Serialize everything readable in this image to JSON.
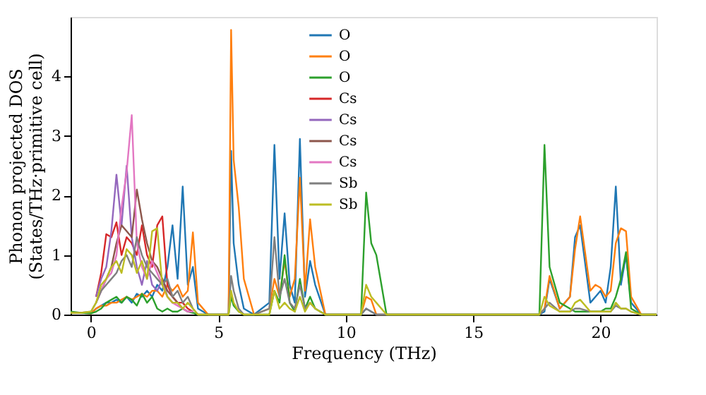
{
  "chart_data": {
    "type": "line",
    "xlabel": "Frequency (THz)",
    "ylabel": "Phonon projected DOS\n(States/THz·primitive cell)",
    "xlim": [
      -0.8,
      22.2
    ],
    "ylim": [
      0,
      5
    ],
    "xticks": [
      0,
      5,
      10,
      15,
      20
    ],
    "yticks": [
      0,
      1,
      2,
      3,
      4
    ],
    "grid": false,
    "legend": "top",
    "marker": "none",
    "line_style": "solid",
    "x": [
      -0.8,
      -0.4,
      0,
      0.2,
      0.4,
      0.6,
      0.8,
      1.0,
      1.2,
      1.4,
      1.6,
      1.8,
      2.0,
      2.2,
      2.4,
      2.6,
      2.8,
      3.0,
      3.2,
      3.4,
      3.6,
      3.8,
      4.0,
      4.2,
      4.6,
      5.4,
      5.5,
      5.6,
      5.8,
      6.0,
      6.4,
      7.0,
      7.2,
      7.4,
      7.6,
      7.8,
      8.0,
      8.2,
      8.4,
      8.6,
      8.8,
      9.2,
      10.0,
      10.6,
      10.8,
      11.0,
      11.2,
      11.6,
      17.6,
      17.8,
      18.0,
      18.4,
      18.8,
      19.0,
      19.2,
      19.6,
      19.8,
      20.0,
      20.2,
      20.4,
      20.6,
      20.8,
      21.0,
      21.2,
      21.6,
      22.2
    ],
    "series": [
      {
        "name": "O",
        "color": "#1f77b4",
        "values": [
          null,
          null,
          0.02,
          0.1,
          0.15,
          0.2,
          0.2,
          0.25,
          0.2,
          0.3,
          0.2,
          0.35,
          0.3,
          0.4,
          0.3,
          0.5,
          0.4,
          0.8,
          1.5,
          0.6,
          2.15,
          0.5,
          0.8,
          0.1,
          0,
          0,
          2.75,
          1.2,
          0.5,
          0.1,
          0,
          0.2,
          2.85,
          0.6,
          1.7,
          0.5,
          0.2,
          2.95,
          0.3,
          0.9,
          0.5,
          0,
          0,
          0,
          0.1,
          0.05,
          0,
          0,
          0,
          0.05,
          0.6,
          0.1,
          0.3,
          1.3,
          1.5,
          0.2,
          0.3,
          0.4,
          0.2,
          0.8,
          2.15,
          0.5,
          1.0,
          0.2,
          0,
          0
        ]
      },
      {
        "name": "O",
        "color": "#ff7f0e",
        "values": [
          0.03,
          0.03,
          0.02,
          0.1,
          0.15,
          0.15,
          0.2,
          0.2,
          0.25,
          0.3,
          0.25,
          0.3,
          0.35,
          0.3,
          0.4,
          0.4,
          0.3,
          0.5,
          0.4,
          0.5,
          0.3,
          0.4,
          1.38,
          0.2,
          0,
          0,
          4.78,
          2.6,
          1.8,
          0.6,
          0,
          0.1,
          0.6,
          0.3,
          0.9,
          0.3,
          0.6,
          2.3,
          0.4,
          1.6,
          0.8,
          0,
          0,
          0,
          0.3,
          0.25,
          0,
          0,
          0,
          0.1,
          0.65,
          0.1,
          0.3,
          1.1,
          1.65,
          0.4,
          0.5,
          0.45,
          0.3,
          0.4,
          1.2,
          1.45,
          1.4,
          0.3,
          0,
          0
        ]
      },
      {
        "name": "O",
        "color": "#2ca02c",
        "values": [
          0.05,
          0.03,
          0.02,
          0.05,
          0.1,
          0.2,
          0.25,
          0.3,
          0.2,
          0.3,
          0.25,
          0.15,
          0.35,
          0.2,
          0.3,
          0.1,
          0.05,
          0.1,
          0.05,
          0.05,
          0.1,
          0.05,
          0.03,
          0,
          0,
          0,
          0.3,
          0.15,
          0.05,
          0,
          0,
          0,
          0.4,
          0.2,
          1.0,
          0.2,
          0.05,
          0.6,
          0.1,
          0.3,
          0.1,
          0,
          0,
          0,
          2.05,
          1.2,
          1.0,
          0,
          0,
          2.85,
          0.8,
          0.2,
          0.1,
          0.05,
          0.05,
          0.05,
          0.05,
          0.05,
          0.1,
          0.1,
          0.3,
          0.6,
          1.05,
          0.1,
          0,
          0
        ]
      },
      {
        "name": "Cs",
        "color": "#d62728",
        "values": [
          null,
          null,
          null,
          0.3,
          0.7,
          1.35,
          1.3,
          1.55,
          1.0,
          1.3,
          1.2,
          1.0,
          1.5,
          1.0,
          0.8,
          1.5,
          1.65,
          0.5,
          0.3,
          0.2,
          0.2,
          0.1,
          0.05,
          null,
          null,
          null,
          null,
          null,
          null,
          null,
          null,
          null,
          null,
          null,
          null,
          null,
          null,
          null,
          null,
          null,
          null,
          null,
          null,
          null,
          null,
          null,
          null,
          null,
          null,
          null,
          null,
          null,
          null,
          null,
          null,
          null,
          null,
          null,
          null,
          null,
          null,
          null,
          null,
          null,
          null,
          null
        ]
      },
      {
        "name": "Cs",
        "color": "#9467bd",
        "values": [
          null,
          null,
          null,
          0.3,
          0.6,
          0.8,
          1.4,
          2.35,
          1.5,
          2.5,
          1.3,
          0.8,
          0.5,
          0.9,
          0.5,
          0.4,
          0.6,
          0.3,
          0.2,
          0.2,
          0.1,
          0.05,
          0.05,
          null,
          null,
          null,
          null,
          null,
          null,
          null,
          null,
          null,
          null,
          null,
          null,
          null,
          null,
          null,
          null,
          null,
          null,
          null,
          null,
          null,
          null,
          null,
          null,
          null,
          null,
          null,
          null,
          null,
          null,
          null,
          null,
          null,
          null,
          null,
          null,
          null,
          null,
          null,
          null,
          null,
          null,
          null
        ]
      },
      {
        "name": "Cs",
        "color": "#8c564b",
        "values": [
          null,
          null,
          null,
          0.2,
          0.4,
          0.6,
          0.8,
          1.2,
          1.5,
          1.4,
          1.3,
          2.1,
          1.6,
          1.2,
          0.9,
          0.8,
          0.6,
          0.4,
          0.3,
          0.2,
          0.1,
          0.05,
          0.05,
          null,
          null,
          null,
          null,
          null,
          null,
          null,
          null,
          null,
          null,
          null,
          null,
          null,
          null,
          null,
          null,
          null,
          null,
          null,
          null,
          null,
          null,
          null,
          null,
          null,
          null,
          null,
          null,
          null,
          null,
          null,
          null,
          null,
          null,
          null,
          null,
          null,
          null,
          null,
          null,
          null,
          null,
          null
        ]
      },
      {
        "name": "Cs",
        "color": "#e377c2",
        "values": [
          null,
          null,
          null,
          0.2,
          0.4,
          0.6,
          0.7,
          1.0,
          1.8,
          2.4,
          3.35,
          1.2,
          0.8,
          0.6,
          0.9,
          0.7,
          0.5,
          0.3,
          0.2,
          0.15,
          0.1,
          0.05,
          0.05,
          null,
          null,
          null,
          null,
          null,
          null,
          null,
          null,
          null,
          null,
          null,
          null,
          null,
          null,
          null,
          null,
          null,
          null,
          null,
          null,
          null,
          null,
          null,
          null,
          null,
          null,
          null,
          null,
          null,
          null,
          null,
          null,
          null,
          null,
          null,
          null,
          null,
          null,
          null,
          null,
          null,
          null,
          null
        ]
      },
      {
        "name": "Sb",
        "color": "#7f7f7f",
        "values": [
          0.03,
          0.03,
          0.05,
          0.2,
          0.4,
          0.5,
          0.6,
          0.7,
          0.9,
          1.0,
          0.8,
          1.3,
          1.0,
          0.8,
          0.7,
          0.6,
          0.5,
          0.6,
          0.3,
          0.4,
          0.2,
          0.3,
          0.1,
          0,
          0,
          0,
          0.65,
          0.4,
          0.1,
          0,
          0,
          0.1,
          1.3,
          0.3,
          0.6,
          0.2,
          0.1,
          0.5,
          0.1,
          0.2,
          0.1,
          0,
          0,
          0,
          0.1,
          0.05,
          0,
          0,
          0,
          0.1,
          0.2,
          0.05,
          0.05,
          0.1,
          0.1,
          0.05,
          0.05,
          0.05,
          0.05,
          0.05,
          0.15,
          0.1,
          0.1,
          0.05,
          0,
          0
        ]
      },
      {
        "name": "Sb",
        "color": "#bcbd22",
        "values": [
          0.03,
          0.03,
          0.05,
          0.2,
          0.5,
          0.6,
          0.8,
          0.9,
          0.7,
          1.1,
          1.0,
          0.7,
          0.9,
          0.6,
          1.4,
          1.45,
          0.5,
          0.3,
          0.2,
          0.2,
          0.1,
          0.2,
          0.1,
          0,
          0,
          0,
          0.4,
          0.2,
          0.05,
          0,
          0,
          0,
          0.4,
          0.1,
          0.2,
          0.1,
          0.05,
          0.3,
          0.05,
          0.2,
          0.1,
          0,
          0,
          0,
          0.5,
          0.3,
          0.2,
          0,
          0,
          0.3,
          0.15,
          0.05,
          0.05,
          0.2,
          0.25,
          0.05,
          0.05,
          0.05,
          0.05,
          0.05,
          0.2,
          0.1,
          0.1,
          0.05,
          0,
          0
        ]
      }
    ]
  }
}
